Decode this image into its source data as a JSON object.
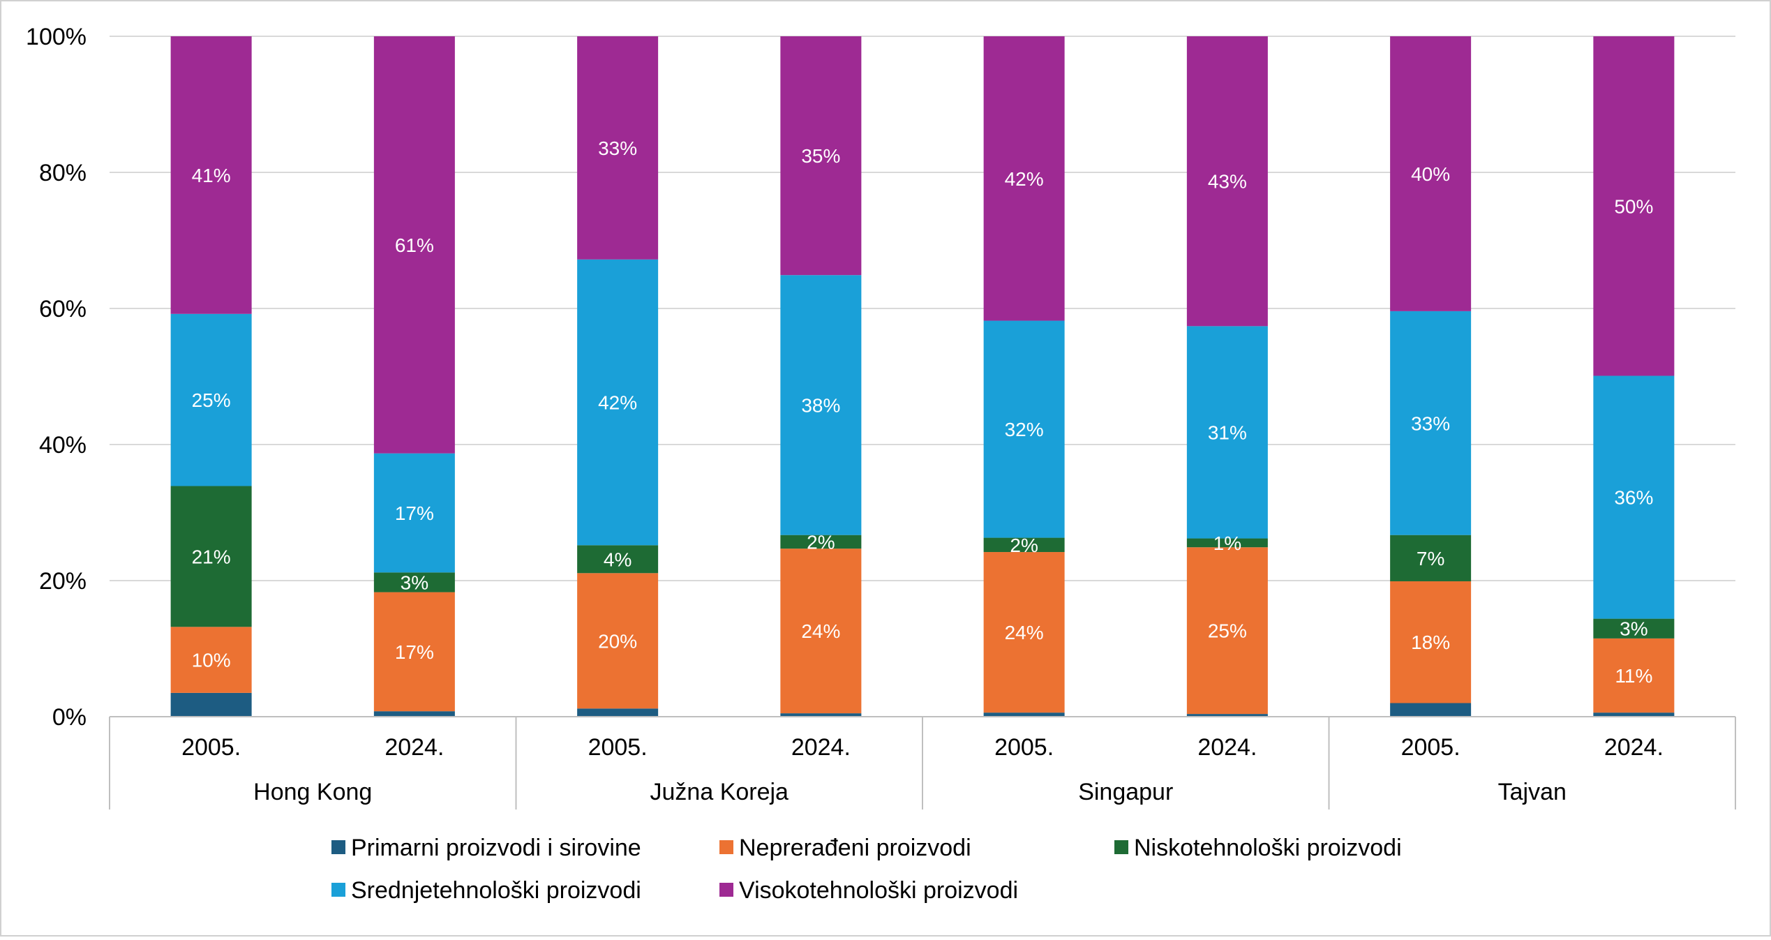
{
  "chart_data": {
    "type": "bar",
    "stacked": true,
    "percent": true,
    "ylim": [
      0,
      100
    ],
    "yticks": [
      "0%",
      "20%",
      "40%",
      "60%",
      "80%",
      "100%"
    ],
    "grid": true,
    "legend_position": "bottom",
    "groups": [
      {
        "name": "Hong Kong",
        "categories": [
          "2005.",
          "2024."
        ]
      },
      {
        "name": "Južna Koreja",
        "categories": [
          "2005.",
          "2024."
        ]
      },
      {
        "name": "Singapur",
        "categories": [
          "2005.",
          "2024."
        ]
      },
      {
        "name": "Tajvan",
        "categories": [
          "2005.",
          "2024."
        ]
      }
    ],
    "series": [
      {
        "name": "Primarni proizvodi i sirovine",
        "color": "#1D5C82",
        "values": [
          3.5,
          0.8,
          1.2,
          0.5,
          0.6,
          0.4,
          2.0,
          0.6
        ],
        "labels": [
          "",
          "",
          "",
          "",
          "",
          "",
          "",
          ""
        ]
      },
      {
        "name": "Neprerađeni proizvodi",
        "color": "#EC7232",
        "values": [
          9.7,
          17.5,
          19.9,
          24.2,
          23.6,
          24.5,
          17.9,
          10.9
        ],
        "labels": [
          "10%",
          "17%",
          "20%",
          "24%",
          "24%",
          "25%",
          "18%",
          "11%"
        ]
      },
      {
        "name": "Niskotehnološki proizvodi",
        "color": "#1E6B34",
        "values": [
          20.7,
          2.9,
          4.1,
          2.0,
          2.1,
          1.3,
          6.8,
          2.9
        ],
        "labels": [
          "21%",
          "3%",
          "4%",
          "2%",
          "2%",
          "1%",
          "7%",
          "3%"
        ]
      },
      {
        "name": "Srednjetehnološki proizvodi",
        "color": "#1AA0D8",
        "values": [
          25.3,
          17.5,
          42.0,
          38.2,
          31.9,
          31.2,
          32.9,
          35.7
        ],
        "labels": [
          "25%",
          "17%",
          "42%",
          "38%",
          "32%",
          "31%",
          "33%",
          "36%"
        ]
      },
      {
        "name": "Visokotehnološki proizvodi",
        "color": "#9E2A93",
        "values": [
          40.8,
          61.3,
          32.8,
          35.1,
          41.8,
          42.6,
          40.4,
          49.9
        ],
        "labels": [
          "41%",
          "61%",
          "33%",
          "35%",
          "42%",
          "43%",
          "40%",
          "50%"
        ]
      }
    ]
  }
}
